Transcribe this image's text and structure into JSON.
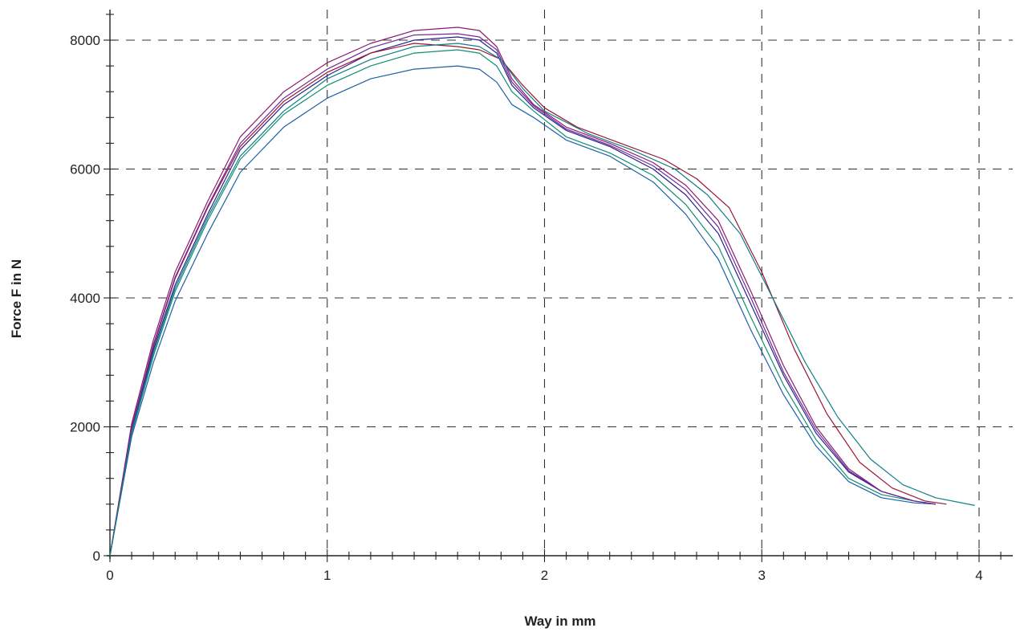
{
  "chart_data": {
    "type": "line",
    "xlabel": "Way in mm",
    "ylabel": "Force F in N",
    "xlim": [
      0,
      4.2
    ],
    "ylim": [
      0,
      8500
    ],
    "x_ticks": [
      0,
      1,
      2,
      3,
      4
    ],
    "y_ticks": [
      0,
      2000,
      4000,
      6000,
      8000
    ],
    "x_tick_labels": [
      "0",
      "1",
      "2",
      "3",
      "4"
    ],
    "y_tick_labels": [
      "0",
      "2000",
      "4000",
      "6000",
      "8000"
    ],
    "grid": "dashed",
    "legend": "none",
    "series_colors": [
      "#2a1f8f",
      "#8e1a6b",
      "#0e8f74",
      "#9b1530",
      "#1c5fa8",
      "#6d2a9a",
      "#0f7f86"
    ],
    "series": [
      {
        "x": [
          0,
          0.1,
          0.2,
          0.3,
          0.45,
          0.6,
          0.8,
          1.0,
          1.2,
          1.4,
          1.6,
          1.7,
          1.78,
          1.85,
          1.95,
          2.1,
          2.3,
          2.5,
          2.65,
          2.8,
          2.95,
          3.1,
          3.25,
          3.4,
          3.55,
          3.7,
          3.8
        ],
        "y": [
          0,
          1950,
          3200,
          4200,
          5300,
          6300,
          7000,
          7450,
          7800,
          8000,
          8050,
          8000,
          7800,
          7300,
          6950,
          6600,
          6350,
          6000,
          5600,
          5000,
          3900,
          2800,
          1900,
          1300,
          1000,
          850,
          800
        ]
      },
      {
        "x": [
          0,
          0.1,
          0.2,
          0.3,
          0.45,
          0.6,
          0.8,
          1.0,
          1.2,
          1.4,
          1.6,
          1.7,
          1.78,
          1.85,
          1.95,
          2.1,
          2.3,
          2.5,
          2.65,
          2.8,
          2.95,
          3.1,
          3.25,
          3.4,
          3.55,
          3.7,
          3.8
        ],
        "y": [
          0,
          2050,
          3350,
          4400,
          5500,
          6500,
          7200,
          7650,
          7950,
          8150,
          8200,
          8150,
          7900,
          7400,
          7000,
          6650,
          6400,
          6100,
          5750,
          5200,
          4100,
          2950,
          2000,
          1350,
          1000,
          850,
          800
        ]
      },
      {
        "x": [
          0,
          0.1,
          0.2,
          0.3,
          0.45,
          0.6,
          0.8,
          1.0,
          1.2,
          1.4,
          1.6,
          1.7,
          1.78,
          1.85,
          1.95,
          2.1,
          2.3,
          2.5,
          2.65,
          2.8,
          2.95,
          3.1,
          3.25,
          3.4,
          3.55,
          3.7,
          3.8
        ],
        "y": [
          0,
          1900,
          3100,
          4100,
          5200,
          6150,
          6850,
          7300,
          7600,
          7800,
          7850,
          7800,
          7600,
          7200,
          6900,
          6500,
          6250,
          5900,
          5450,
          4800,
          3700,
          2650,
          1800,
          1200,
          950,
          850,
          800
        ]
      },
      {
        "x": [
          0,
          0.1,
          0.2,
          0.3,
          0.45,
          0.6,
          0.8,
          1.0,
          1.2,
          1.4,
          1.6,
          1.7,
          1.8,
          1.9,
          2.0,
          2.15,
          2.35,
          2.55,
          2.7,
          2.85,
          3.0,
          3.15,
          3.3,
          3.45,
          3.6,
          3.75,
          3.85
        ],
        "y": [
          0,
          2000,
          3250,
          4300,
          5400,
          6350,
          7050,
          7500,
          7800,
          7950,
          7900,
          7850,
          7700,
          7300,
          6950,
          6650,
          6400,
          6150,
          5850,
          5400,
          4400,
          3200,
          2200,
          1450,
          1050,
          850,
          800
        ]
      },
      {
        "x": [
          0,
          0.1,
          0.2,
          0.3,
          0.45,
          0.6,
          0.8,
          1.0,
          1.2,
          1.4,
          1.6,
          1.7,
          1.78,
          1.85,
          1.95,
          2.1,
          2.3,
          2.5,
          2.65,
          2.8,
          2.95,
          3.1,
          3.25,
          3.4,
          3.55,
          3.7,
          3.8
        ],
        "y": [
          0,
          1850,
          3000,
          3950,
          5000,
          5950,
          6650,
          7100,
          7400,
          7550,
          7600,
          7550,
          7350,
          7000,
          6800,
          6450,
          6200,
          5800,
          5300,
          4600,
          3500,
          2500,
          1700,
          1150,
          900,
          820,
          800
        ]
      },
      {
        "x": [
          0,
          0.1,
          0.2,
          0.3,
          0.45,
          0.6,
          0.8,
          1.0,
          1.2,
          1.4,
          1.6,
          1.7,
          1.78,
          1.85,
          1.95,
          2.1,
          2.3,
          2.5,
          2.65,
          2.8,
          2.95,
          3.1,
          3.25,
          3.4,
          3.55,
          3.7,
          3.8
        ],
        "y": [
          0,
          1980,
          3280,
          4320,
          5420,
          6400,
          7100,
          7550,
          7880,
          8080,
          8100,
          8050,
          7850,
          7350,
          6980,
          6620,
          6370,
          6050,
          5680,
          5100,
          4000,
          2850,
          1950,
          1320,
          1000,
          850,
          800
        ]
      },
      {
        "x": [
          0,
          0.1,
          0.2,
          0.3,
          0.45,
          0.6,
          0.8,
          1.0,
          1.2,
          1.4,
          1.6,
          1.7,
          1.8,
          1.9,
          2.0,
          2.2,
          2.4,
          2.6,
          2.75,
          2.9,
          3.05,
          3.2,
          3.35,
          3.5,
          3.65,
          3.8,
          3.98
        ],
        "y": [
          0,
          1920,
          3150,
          4150,
          5250,
          6200,
          6900,
          7400,
          7700,
          7900,
          7950,
          7900,
          7700,
          7250,
          6900,
          6550,
          6300,
          6000,
          5600,
          5000,
          4000,
          3000,
          2150,
          1500,
          1100,
          900,
          780
        ]
      }
    ]
  }
}
